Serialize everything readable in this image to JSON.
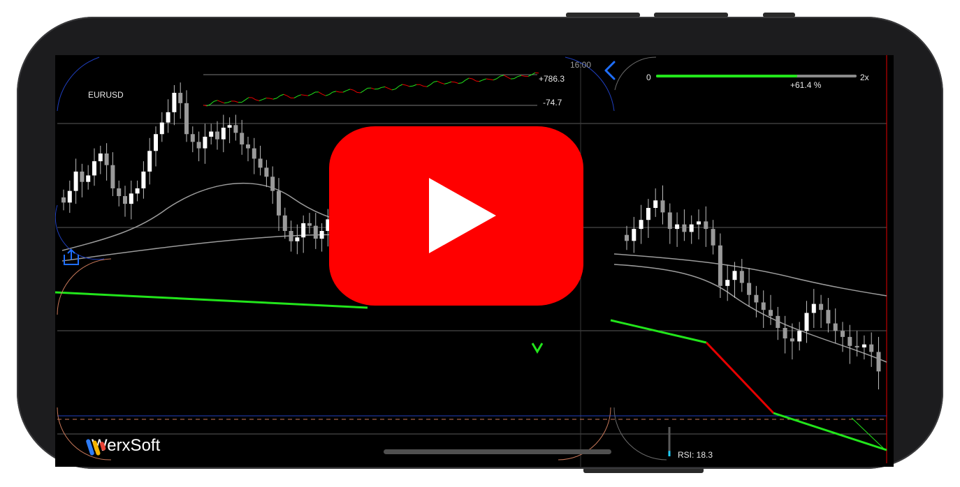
{
  "app": {
    "symbol": "EURUSD",
    "time_label": "16:00",
    "brand_name": "WerxSoft"
  },
  "pnl": {
    "high_label": "+786.3",
    "low_label": "-74.7"
  },
  "leverage": {
    "min_label": "0",
    "max_label": "2x",
    "percent_label": "+61.4 %",
    "fraction": 0.7
  },
  "indicators": {
    "rsi_label": "RSI: 18.3",
    "rsi_value": 18.3
  },
  "colors": {
    "background": "#000000",
    "candle": "#ffffff",
    "trendline": "#22e51b",
    "down_segment": "#e60000",
    "ma_line": "#9c9c9c",
    "accent_blue": "#1f6fff",
    "play_button": "#ff0000",
    "cursor_line": "#e60000"
  },
  "icons": {
    "share": "share-icon",
    "back": "chevron-left-icon",
    "logo": "werxsoft-logo-icon",
    "play": "play-icon"
  },
  "chart_data": {
    "type": "candlestick",
    "symbol": "EURUSD",
    "closes": [
      1.0842,
      1.0851,
      1.0866,
      1.0858,
      1.0863,
      1.0874,
      1.088,
      1.0871,
      1.0853,
      1.0847,
      1.0841,
      1.0849,
      1.0853,
      1.0866,
      1.0882,
      1.0895,
      1.0904,
      1.0912,
      1.0927,
      1.0919,
      1.0895,
      1.0889,
      1.0884,
      1.0893,
      1.0897,
      1.0891,
      1.09,
      1.0902,
      1.0896,
      1.0887,
      1.0884,
      1.0876,
      1.0869,
      1.0862,
      1.0851,
      1.0832,
      1.082,
      1.0812,
      1.0815,
      1.0826,
      1.0824,
      1.0814,
      1.082,
      1.0829,
      1.0837,
      1.0846,
      1.084,
      1.0828,
      1.081,
      1.0808
    ],
    "closes_right": [
      1.0818,
      1.0826,
      1.0832,
      1.084,
      1.0845,
      1.0837,
      1.0826,
      1.0829,
      1.0824,
      1.0829,
      1.0831,
      1.0826,
      1.0815,
      1.0788,
      1.0792,
      1.0798,
      1.079,
      1.0782,
      1.0777,
      1.0772,
      1.0768,
      1.076,
      1.0753,
      1.0751,
      1.0758,
      1.077,
      1.0776,
      1.0772,
      1.0763,
      1.0758,
      1.0754,
      1.0748,
      1.0747,
      1.0749,
      1.0744,
      1.0731
    ],
    "rsi": 18.3,
    "pnl_range": [
      -74.7,
      786.3
    ]
  }
}
